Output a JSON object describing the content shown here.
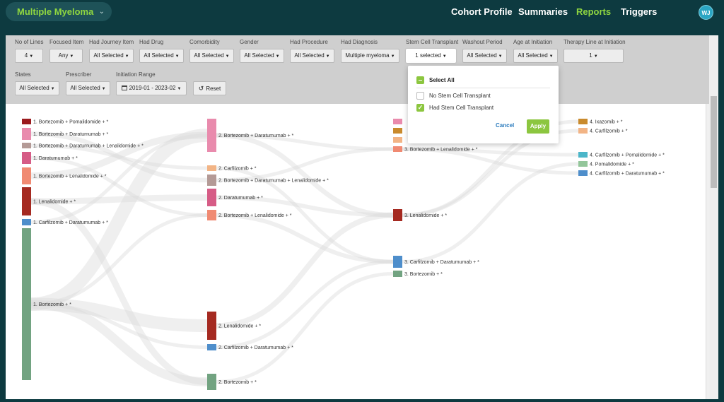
{
  "header": {
    "cohort": "Multiple Myeloma",
    "nav": [
      "Cohort Profile",
      "Summaries",
      "Reports",
      "Triggers"
    ],
    "active_nav": "Reports",
    "user_initials": "WJ"
  },
  "filters": {
    "no_of_lines": {
      "label": "No of Lines",
      "value": "4"
    },
    "focused_item": {
      "label": "Focused Item",
      "value": "Any"
    },
    "had_journey_item": {
      "label": "Had Journey Item",
      "value": "All Selected"
    },
    "had_drug": {
      "label": "Had Drug",
      "value": "All Selected"
    },
    "comorbidity": {
      "label": "Comorbidity",
      "value": "All Selected"
    },
    "gender": {
      "label": "Gender",
      "value": "All Selected"
    },
    "had_procedure": {
      "label": "Had Procedure",
      "value": "All Selected"
    },
    "had_diagnosis": {
      "label": "Had Diagnosis",
      "value": "Multiple myeloma"
    },
    "stem_cell_transplant": {
      "label": "Stem Cell Transplant",
      "value": "1 selected"
    },
    "washout_period": {
      "label": "Washout Period",
      "value": "All Selected"
    },
    "age_at_initiation": {
      "label": "Age at Initiation",
      "value": "All Selected"
    },
    "therapy_line_at_initiation": {
      "label": "Therapy Line at Initiation",
      "value": "1"
    },
    "states": {
      "label": "States",
      "value": "All Selected"
    },
    "prescriber": {
      "label": "Prescriber",
      "value": "All Selected"
    },
    "initiation_range": {
      "label": "Initiation Range",
      "value": "2019-01 - 2023-02"
    },
    "reset_label": "Reset"
  },
  "stem_cell_dropdown": {
    "select_all": "Select All",
    "options": [
      {
        "label": "No Stem Cell Transplant",
        "checked": false
      },
      {
        "label": "Had Stem Cell Transplant",
        "checked": true
      }
    ],
    "cancel": "Cancel",
    "apply": "Apply"
  },
  "sankey": {
    "columns": [
      [
        {
          "label": "1. Bortezomib + Pomalidomide + *",
          "color": "#9b1b1e"
        },
        {
          "label": "1. Bortezomib + Daratumumab + *",
          "color": "#e98bad"
        },
        {
          "label": "1. Bortezomib + Daratumumab + Lenalidomide + *",
          "color": "#b49a96"
        },
        {
          "label": "1. Daratumumab + *",
          "color": "#d65c86"
        },
        {
          "label": "1. Bortezomib + Lenalidomide + *",
          "color": "#f08a72"
        },
        {
          "label": "1. Lenalidomide + *",
          "color": "#a52a21"
        },
        {
          "label": "1. Carfilzomib + Daratumumab + *",
          "color": "#4e8ecb"
        },
        {
          "label": "1. Bortezomib + *",
          "color": "#72a381"
        }
      ],
      [
        {
          "label": "2. Bortezomib + Daratumumab + *",
          "color": "#e98bad"
        },
        {
          "label": "2. Carfilzomib + *",
          "color": "#f2b485"
        },
        {
          "label": "2. Bortezomib + Daratumumab + Lenalidomide + *",
          "color": "#b49a96"
        },
        {
          "label": "2. Daratumumab + *",
          "color": "#d65c86"
        },
        {
          "label": "2. Bortezomib + Lenalidomide + *",
          "color": "#f08a72"
        },
        {
          "label": "2. Lenalidomide + *",
          "color": "#a52a21"
        },
        {
          "label": "2. Carfilzomib + Daratumumab + *",
          "color": "#4e8ecb"
        },
        {
          "label": "2. Bortezomib + *",
          "color": "#72a381"
        }
      ],
      [
        {
          "label": "3. Bortezomib + Lenalidomide + *",
          "color": "#f08a72"
        },
        {
          "label": "3. Lenalidomide + *",
          "color": "#a52a21"
        },
        {
          "label": "3. Carfilzomib + Daratumumab + *",
          "color": "#4e8ecb"
        },
        {
          "label": "3. Bortezomib + *",
          "color": "#72a381"
        }
      ],
      [
        {
          "label": "4. Ixazomib + *",
          "color": "#c98a2c"
        },
        {
          "label": "4. Carfilzomib + *",
          "color": "#f2b485"
        },
        {
          "label": "4. Carfilzomib + Pomalidomide + *",
          "color": "#4bb6c9"
        },
        {
          "label": "4. Pomalidomide + *",
          "color": "#93c69a"
        },
        {
          "label": "4. Carfilzomib + Daratumumab + *",
          "color": "#4e8ecb"
        }
      ]
    ]
  }
}
